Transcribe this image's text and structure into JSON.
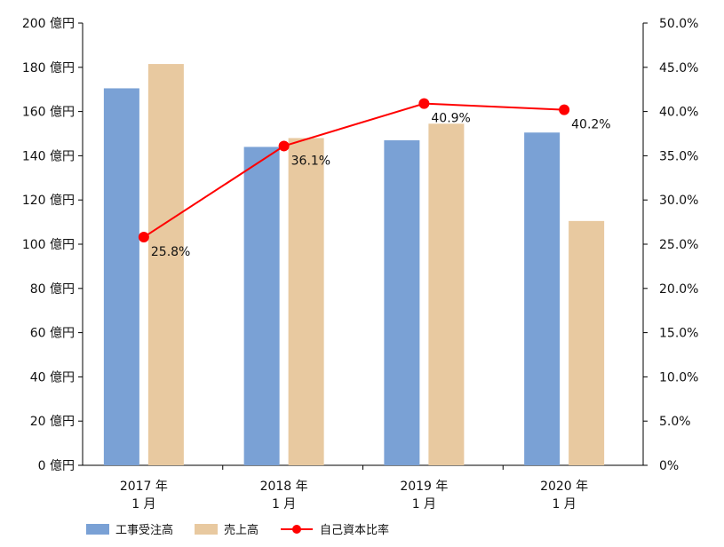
{
  "chart_data": {
    "type": "bar",
    "categories": [
      [
        "2017 年",
        "1 月"
      ],
      [
        "2018 年",
        "1 月"
      ],
      [
        "2019 年",
        "1 月"
      ],
      [
        "2020 年",
        "1 月"
      ]
    ],
    "y_left_ticks": [
      "0 億円",
      "20 億円",
      "40 億円",
      "60 億円",
      "80 億円",
      "100 億円",
      "120 億円",
      "140 億円",
      "160 億円",
      "180 億円",
      "200 億円"
    ],
    "y_right_ticks": [
      "0%",
      "5.0%",
      "10.0%",
      "15.0%",
      "20.0%",
      "25.0%",
      "30.0%",
      "35.0%",
      "40.0%",
      "45.0%",
      "50.0%"
    ],
    "ylim_left": [
      0,
      200
    ],
    "ylim_right": [
      0,
      50
    ],
    "series": [
      {
        "name": "工事受注高",
        "type": "bar",
        "axis": "left",
        "color": "#7aa1d5",
        "values": [
          170.5,
          144,
          147,
          150.5
        ]
      },
      {
        "name": "売上高",
        "type": "bar",
        "axis": "left",
        "color": "#e8c9a0",
        "values": [
          181.5,
          148,
          154.5,
          110.5
        ]
      },
      {
        "name": "自己資本比率",
        "type": "line",
        "axis": "right",
        "color": "#ff0000",
        "values": [
          25.8,
          36.1,
          40.9,
          40.2
        ],
        "data_labels": [
          "25.8%",
          "36.1%",
          "40.9%",
          "40.2%"
        ]
      }
    ],
    "grid": false,
    "legend_position": "bottom"
  }
}
